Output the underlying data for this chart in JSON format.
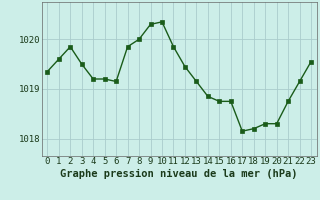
{
  "x": [
    0,
    1,
    2,
    3,
    4,
    5,
    6,
    7,
    8,
    9,
    10,
    11,
    12,
    13,
    14,
    15,
    16,
    17,
    18,
    19,
    20,
    21,
    22,
    23
  ],
  "y": [
    1019.35,
    1019.6,
    1019.85,
    1019.5,
    1019.2,
    1019.2,
    1019.15,
    1019.85,
    1020.0,
    1020.3,
    1020.35,
    1019.85,
    1019.45,
    1019.15,
    1018.85,
    1018.75,
    1018.75,
    1018.15,
    1018.2,
    1018.3,
    1018.3,
    1018.75,
    1019.15,
    1019.55
  ],
  "line_color": "#1a5c1a",
  "marker_color": "#1a5c1a",
  "bg_color": "#cceee8",
  "grid_color": "#aacccc",
  "title": "Graphe pression niveau de la mer (hPa)",
  "xlim": [
    -0.5,
    23.5
  ],
  "ylim": [
    1017.65,
    1020.75
  ],
  "yticks": [
    1018,
    1019,
    1020
  ],
  "xticks": [
    0,
    1,
    2,
    3,
    4,
    5,
    6,
    7,
    8,
    9,
    10,
    11,
    12,
    13,
    14,
    15,
    16,
    17,
    18,
    19,
    20,
    21,
    22,
    23
  ],
  "title_fontsize": 7.5,
  "tick_fontsize": 6.5,
  "line_width": 1.0,
  "marker_size": 2.5
}
